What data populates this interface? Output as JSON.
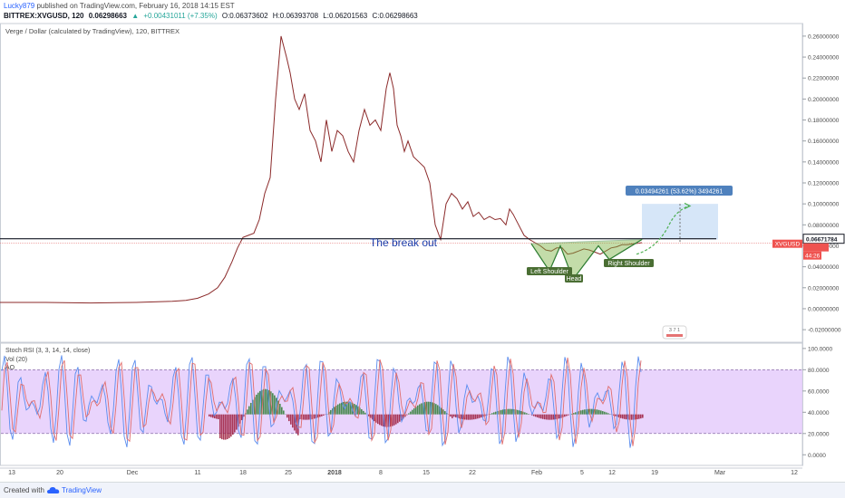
{
  "header": {
    "user": "Lucky879",
    "published": "published on TradingView.com, February 16, 2018 14:15 EST",
    "symbol": "BITTREX:XVGUSD, 120",
    "price": "0.06298663",
    "change": "+0.00431011 (+7.35%)",
    "open": "O:0.06373602",
    "high": "H:0.06393708",
    "low": "L:0.06201563",
    "close": "C:0.06298663"
  },
  "footer": {
    "created": "Created with",
    "brand": "TradingView"
  },
  "chart_data": [
    {
      "type": "line",
      "title": "Verge / Dollar (calculated by TradingView), 120, BITTREX",
      "ylim": [
        -0.032,
        0.272
      ],
      "y_ticks": [
        "0.26000000",
        "0.24000000",
        "0.22000000",
        "0.20000000",
        "0.18000000",
        "0.16000000",
        "0.14000000",
        "0.12000000",
        "0.10000000",
        "0.08000000",
        "0.06000000",
        "0.04000000",
        "0.02000000",
        "0.00000000",
        "-0.02000000"
      ],
      "x_labels": [
        "13",
        "20",
        "Dec",
        "11",
        "18",
        "25",
        "2018",
        "8",
        "15",
        "22",
        "Feb",
        "5",
        "12",
        "19",
        "Mar",
        "12"
      ],
      "series": [
        {
          "x": [
            0,
            50,
            100,
            150,
            190,
            205,
            218,
            230,
            240,
            248,
            256,
            262,
            268,
            274,
            280,
            286,
            292,
            298,
            304,
            307,
            310,
            313,
            316,
            320,
            325,
            330,
            336,
            342,
            348,
            354,
            360,
            366,
            372,
            378,
            384,
            390,
            396,
            402,
            408,
            414,
            420,
            426,
            430,
            434,
            438,
            442,
            446,
            450,
            456,
            462,
            468,
            474,
            480,
            486,
            492,
            498,
            504,
            510,
            516,
            522,
            528,
            534,
            540,
            546,
            552,
            558,
            562,
            566,
            572,
            578,
            584,
            590,
            596,
            602,
            608,
            614,
            620,
            626,
            632,
            638,
            644,
            650,
            656,
            662,
            668,
            674,
            680,
            686,
            692,
            698,
            704,
            708
          ],
          "y": [
            0.006,
            0.006,
            0.0055,
            0.006,
            0.007,
            0.008,
            0.01,
            0.014,
            0.02,
            0.03,
            0.045,
            0.058,
            0.068,
            0.07,
            0.072,
            0.085,
            0.11,
            0.125,
            0.2,
            0.23,
            0.26,
            0.25,
            0.24,
            0.225,
            0.2,
            0.19,
            0.205,
            0.17,
            0.16,
            0.14,
            0.18,
            0.15,
            0.17,
            0.165,
            0.15,
            0.14,
            0.17,
            0.19,
            0.175,
            0.18,
            0.17,
            0.21,
            0.225,
            0.21,
            0.175,
            0.165,
            0.15,
            0.16,
            0.145,
            0.14,
            0.135,
            0.12,
            0.08,
            0.066,
            0.1,
            0.11,
            0.105,
            0.095,
            0.102,
            0.088,
            0.092,
            0.085,
            0.088,
            0.085,
            0.086,
            0.08,
            0.095,
            0.09,
            0.08,
            0.07,
            0.066,
            0.063,
            0.06,
            0.056,
            0.055,
            0.058,
            0.058,
            0.052,
            0.053,
            0.055,
            0.057,
            0.056,
            0.054,
            0.052,
            0.055,
            0.058,
            0.059,
            0.061,
            0.061,
            0.062,
            0.0625,
            0.063
          ]
        }
      ],
      "last_price_label": "0.06671784",
      "symbol_tag": "XVGUSD",
      "timer_tag": "44:26",
      "breakout_level": 0.06672,
      "annotations": {
        "breakout": "The break out",
        "left_shoulder": "Left Shoulder",
        "head": "Head",
        "right_shoulder": "Right Shoulder",
        "projection": "0.03494261 (53.62%) 3494261",
        "badge": "3 7 1"
      },
      "colors": {
        "line": "#8b2a2a",
        "green": "#2e7d32",
        "pattern_fill": "#7cb342",
        "target_fill": "#cfe2f7",
        "target_label": "#4f81bd"
      }
    },
    {
      "type": "line",
      "title": "Stoch RSI (3, 3, 14, 14, close)",
      "legend": [
        "Vol (20)",
        "AO"
      ],
      "ylim": [
        -10,
        105
      ],
      "y_ticks": [
        "100.0000",
        "80.0000",
        "60.0000",
        "40.0000",
        "20.0000",
        "0.0000"
      ],
      "bands": [
        20,
        80
      ],
      "colors": {
        "k": "#e06d6d",
        "d": "#5b8def",
        "band": "#e4c9fb"
      }
    }
  ]
}
